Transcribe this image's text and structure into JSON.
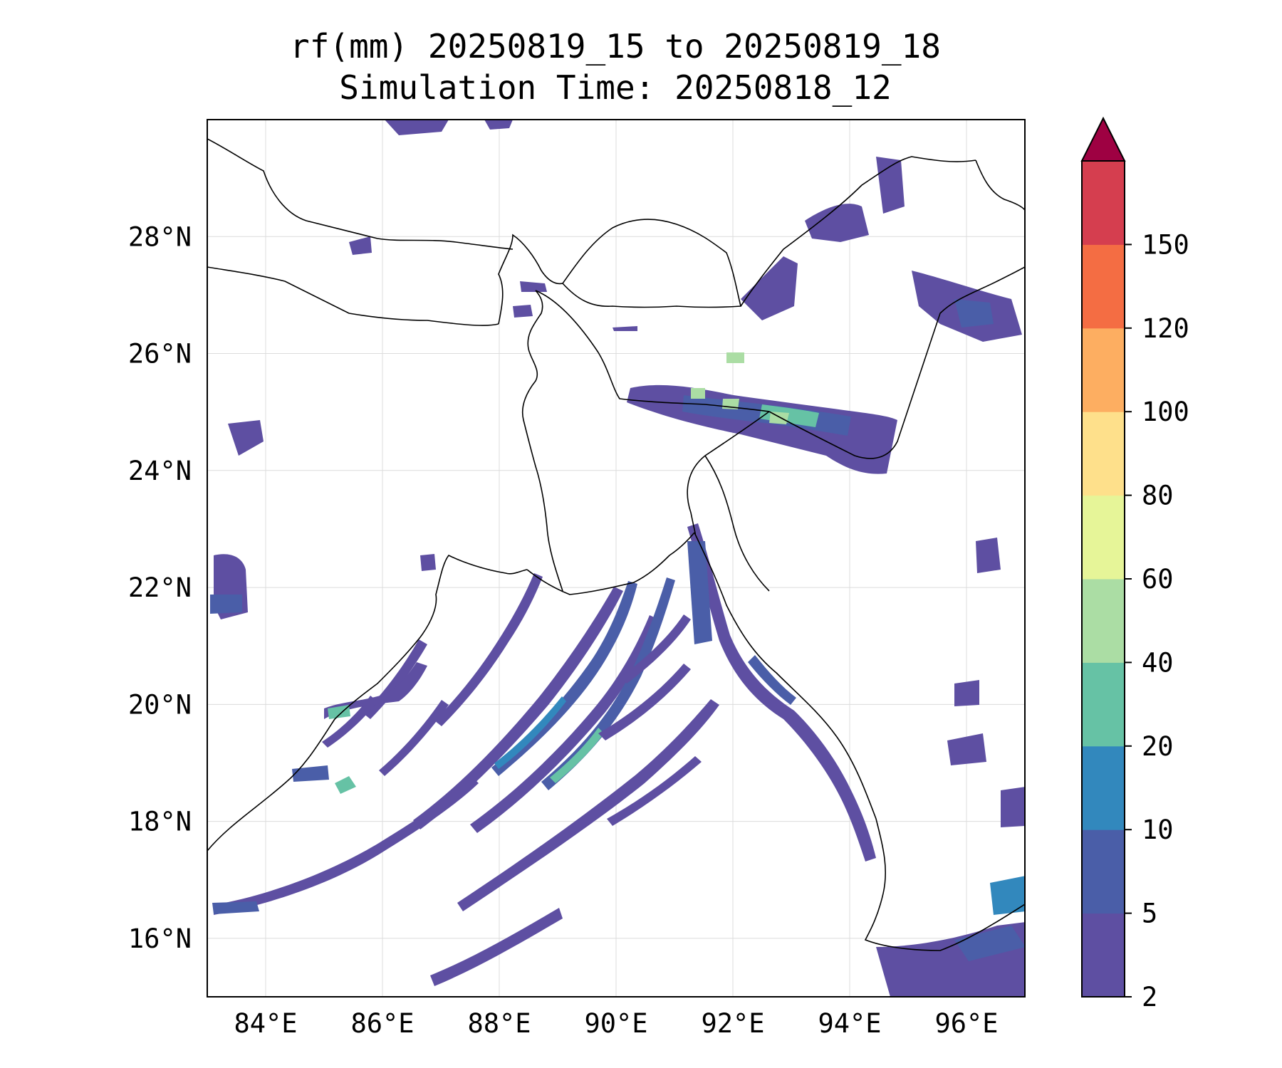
{
  "title": {
    "line1": "rf(mm) 20250819_15 to 20250819_18",
    "line2": "Simulation Time: 20250818_12"
  },
  "map": {
    "lon_range": [
      83.0,
      97.0
    ],
    "lat_range": [
      15.0,
      30.0
    ],
    "x_ticks": [
      "84°E",
      "86°E",
      "88°E",
      "90°E",
      "92°E",
      "94°E",
      "96°E"
    ],
    "y_ticks": [
      "16°N",
      "18°N",
      "20°N",
      "22°N",
      "24°N",
      "26°N",
      "28°N"
    ],
    "gridlines": true,
    "coastline_color": "#000000",
    "background": "#ffffff"
  },
  "colorbar": {
    "labels": [
      "2",
      "5",
      "10",
      "20",
      "40",
      "60",
      "80",
      "100",
      "120",
      "150"
    ],
    "extend": "max",
    "colors": [
      "#5e4fa2",
      "#4a5ea8",
      "#3288bd",
      "#66c2a5",
      "#abdda4",
      "#e6f598",
      "#fee08b",
      "#fdae61",
      "#f46d43",
      "#d53e4f"
    ],
    "over_color": "#9e0142"
  }
}
